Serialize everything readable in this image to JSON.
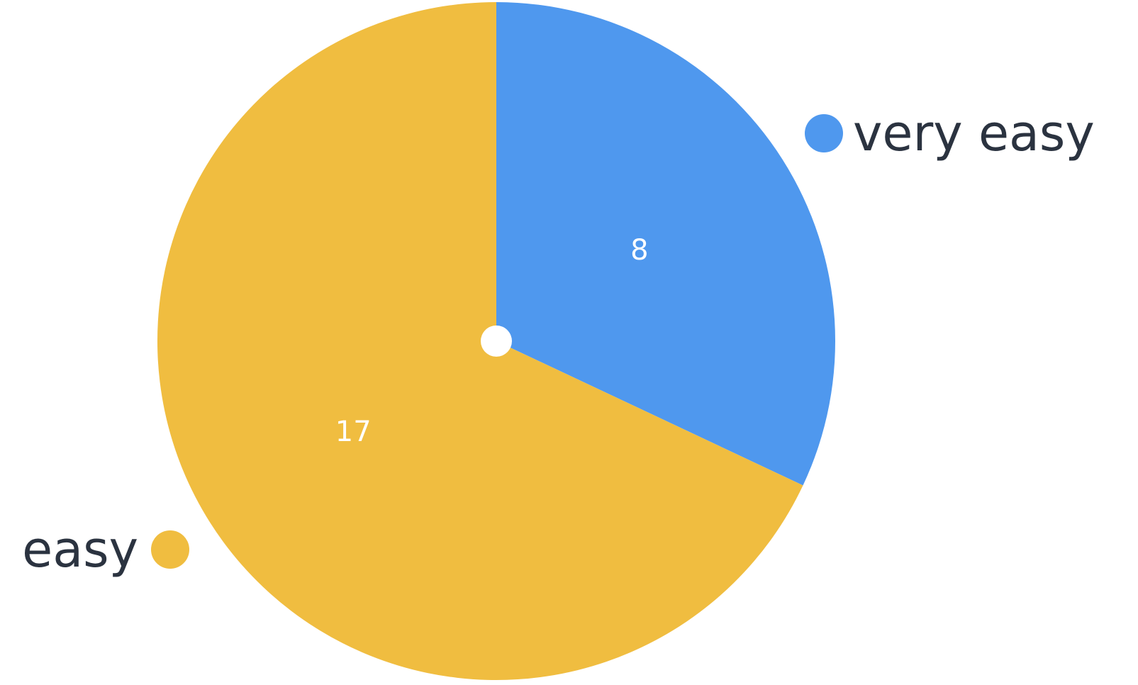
{
  "chart_data": {
    "type": "pie",
    "categories": [
      "very easy",
      "easy"
    ],
    "values": [
      8,
      17
    ],
    "colors": [
      "#4f98ee",
      "#f0bd40"
    ],
    "value_labels": [
      "8",
      "17"
    ],
    "start_angle": "12 o'clock",
    "direction": "clockwise",
    "center_dot": true
  }
}
